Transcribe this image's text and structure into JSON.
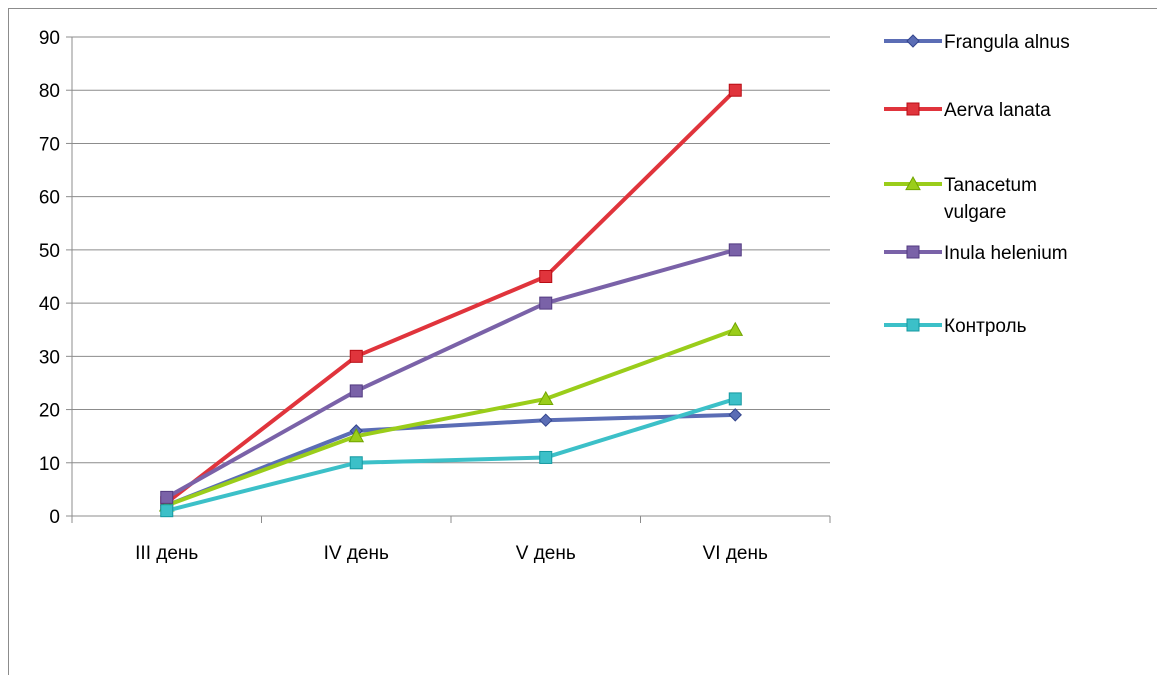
{
  "chart_data": {
    "type": "line",
    "title": "",
    "xlabel": "",
    "ylabel": "",
    "categories": [
      "III день",
      "IV день",
      "V день",
      "VI день"
    ],
    "ylim": [
      0,
      90
    ],
    "yticks": [
      0,
      10,
      20,
      30,
      40,
      50,
      60,
      70,
      80,
      90
    ],
    "grid": true,
    "legend_position": "right",
    "series": [
      {
        "name": "Frangula alnus",
        "values": [
          2,
          16,
          18,
          19
        ],
        "color": "#5b6db5",
        "marker": "diamond"
      },
      {
        "name": "Aerva lanata",
        "values": [
          2.5,
          30,
          45,
          80
        ],
        "color": "#e0343c",
        "marker": "square"
      },
      {
        "name": "Tanacetum vulgare",
        "values": [
          2,
          15,
          22,
          35
        ],
        "color": "#9acd1a",
        "marker": "triangle"
      },
      {
        "name": "Inula helenium",
        "values": [
          3.5,
          23.5,
          40,
          50
        ],
        "color": "#7a62a8",
        "marker": "square"
      },
      {
        "name": "Контроль",
        "values": [
          1,
          10,
          11,
          22
        ],
        "color": "#3cc0c8",
        "marker": "square"
      }
    ]
  }
}
